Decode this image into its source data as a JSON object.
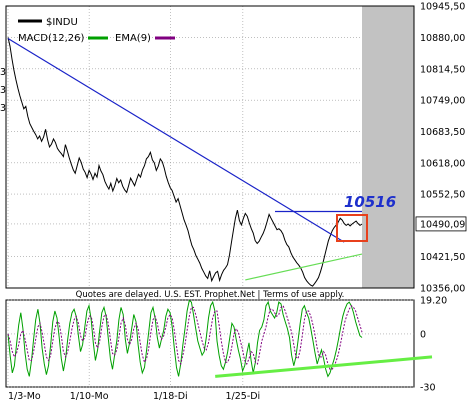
{
  "chart_data": [
    {
      "type": "line",
      "panel": "price",
      "legend": [
        {
          "label": "$INDU",
          "color": "#000000"
        },
        {
          "label": "MACD(12,26)",
          "color": "#00a000"
        },
        {
          "label": "EMA(9)",
          "color": "#800080"
        }
      ],
      "y_tick_labels": [
        "10945,50",
        "10880,00",
        "10814,50",
        "10749,00",
        "10683,50",
        "10618,00",
        "10552,50",
        "10490,09",
        "10421,50",
        "10356,00"
      ],
      "ylim": [
        10356,
        10946
      ],
      "y_scale": "linear",
      "grid": "dotted",
      "cutoff_left_ticks": [
        "3",
        "3",
        "3"
      ],
      "shaded_future_region": true,
      "series": [
        {
          "name": "$INDU",
          "color": "#000000",
          "x": [
            0,
            1,
            2,
            3,
            4,
            5,
            6,
            7,
            8,
            9,
            10,
            11,
            12,
            13,
            14,
            15,
            16,
            17,
            18,
            19,
            20,
            21,
            22,
            23,
            24,
            25,
            26,
            27,
            28,
            29,
            30,
            31,
            32,
            33,
            34,
            35,
            36,
            37,
            38,
            39,
            40,
            41,
            42,
            43,
            44,
            45,
            46,
            47,
            48,
            49,
            50,
            51,
            52,
            53,
            54,
            55,
            56,
            57,
            58,
            59,
            60,
            61,
            62,
            63,
            64,
            65,
            66,
            67,
            68,
            69,
            70,
            71,
            72,
            73,
            74,
            75,
            76,
            77,
            78,
            79,
            80,
            81,
            82,
            83,
            84,
            85,
            86,
            87,
            88,
            89,
            90,
            91,
            92,
            93,
            94,
            95,
            96,
            97,
            98,
            99,
            100,
            101,
            102,
            103,
            104,
            105,
            106,
            107,
            108,
            109,
            110,
            111,
            112,
            113,
            114,
            115,
            116,
            117,
            118,
            119,
            120,
            121,
            122,
            123,
            124,
            125,
            126,
            127,
            128,
            129,
            130,
            131,
            132,
            133,
            134,
            135,
            136,
            137,
            138,
            139,
            140,
            141,
            142,
            143,
            144,
            145,
            146,
            147,
            148,
            149,
            150,
            151,
            152,
            153,
            154,
            155,
            156,
            157,
            158,
            159,
            160,
            161,
            162,
            163,
            164,
            165,
            166,
            167,
            168,
            169,
            170,
            171,
            172,
            173,
            174,
            175,
            176,
            177,
            178,
            179
          ],
          "y": [
            10880,
            10862,
            10835,
            10812,
            10792,
            10774,
            10758,
            10745,
            10731,
            10736,
            10715,
            10700,
            10692,
            10684,
            10677,
            10668,
            10674,
            10663,
            10672,
            10688,
            10666,
            10651,
            10657,
            10668,
            10660,
            10648,
            10642,
            10637,
            10631,
            10656,
            10643,
            10628,
            10615,
            10603,
            10596,
            10612,
            10628,
            10619,
            10605,
            10598,
            10587,
            10602,
            10594,
            10583,
            10596,
            10588,
            10612,
            10601,
            10593,
            10579,
            10570,
            10563,
            10575,
            10559,
            10570,
            10585,
            10576,
            10582,
            10569,
            10561,
            10556,
            10570,
            10586,
            10578,
            10570,
            10582,
            10594,
            10588,
            10603,
            10612,
            10626,
            10631,
            10640,
            10624,
            10618,
            10602,
            10611,
            10626,
            10620,
            10607,
            10590,
            10577,
            10566,
            10560,
            10548,
            10536,
            10543,
            10528,
            10514,
            10499,
            10488,
            10476,
            10460,
            10445,
            10436,
            10424,
            10416,
            10408,
            10397,
            10389,
            10381,
            10376,
            10392,
            10371,
            10380,
            10388,
            10391,
            10372,
            10384,
            10393,
            10398,
            10405,
            10425,
            10452,
            10478,
            10502,
            10519,
            10497,
            10488,
            10501,
            10512,
            10506,
            10492,
            10480,
            10471,
            10455,
            10449,
            10454,
            10462,
            10470,
            10481,
            10495,
            10510,
            10502,
            10494,
            10486,
            10478,
            10480,
            10476,
            10469,
            10456,
            10447,
            10442,
            10430,
            10421,
            10415,
            10409,
            10404,
            10398,
            10389,
            10378,
            10371,
            10366,
            10362,
            10360,
            10365,
            10371,
            10378,
            10390,
            10404,
            10421,
            10438,
            10455,
            10466,
            10476,
            10483,
            10488,
            10494,
            10502,
            10498,
            10491,
            10487,
            10490,
            10486,
            10490,
            10493,
            10496,
            10491,
            10487,
            10490
          ]
        },
        {
          "name": "downtrend",
          "color": "#1a23c8",
          "x": [
            0,
            170
          ],
          "y": [
            10878,
            10452
          ]
        },
        {
          "name": "support",
          "color": "#66dd55",
          "x": [
            120,
            179
          ],
          "y": [
            10373,
            10427
          ]
        },
        {
          "name": "resistance",
          "color": "#1a23c8",
          "x": [
            135,
            179
          ],
          "y": [
            10516,
            10516
          ]
        }
      ],
      "annotations": [
        {
          "label": "10516",
          "color": "#1e30cc"
        }
      ],
      "last_value_label": "10490,09"
    },
    {
      "type": "line",
      "panel": "macd",
      "header_note": "Quotes are delayed. U.S. EST. Prophet.Net | Terms of use apply.",
      "y_tick_labels": [
        "19.20",
        "0",
        "-30"
      ],
      "ylim": [
        -30,
        19.2
      ],
      "series": [
        {
          "name": "MACD(12,26)",
          "color": "#00a000",
          "values": [
            0,
            -12,
            -22,
            -18,
            -6,
            5,
            12,
            3,
            -11,
            -20,
            -24,
            -15,
            -3,
            8,
            14,
            6,
            -8,
            -17,
            -23,
            -18,
            -6,
            7,
            13,
            9,
            -2,
            -14,
            -21,
            -14,
            -3,
            6,
            12,
            14,
            10,
            -1,
            -10,
            -6,
            4,
            13,
            16,
            8,
            -5,
            -15,
            -9,
            2,
            12,
            15,
            10,
            -2,
            -14,
            -20,
            -12,
            -4,
            8,
            15,
            11,
            -3,
            -11,
            -5,
            3,
            11,
            7,
            -6,
            -16,
            -22,
            -19,
            -9,
            1,
            12,
            15,
            9,
            -2,
            -8,
            -3,
            2,
            10,
            14,
            12,
            4,
            -8,
            -19,
            -24,
            -17,
            -6,
            3,
            13,
            19,
            18,
            11,
            3,
            -4,
            -8,
            -12,
            -10,
            -2,
            9,
            16,
            18,
            13,
            -4,
            -12,
            -18,
            -20,
            -16,
            -10,
            -2,
            6,
            4,
            -3,
            -9,
            -14,
            -21,
            -18,
            -11,
            -5,
            -15,
            -22,
            -16,
            -5,
            2,
            4,
            8,
            16,
            18,
            13,
            11,
            9,
            12,
            18,
            17,
            11,
            7,
            3,
            -2,
            -12,
            -18,
            -13,
            -4,
            6,
            14,
            16,
            12,
            9,
            3,
            -4,
            -11,
            -17,
            -13,
            -9,
            -14,
            -20,
            -24,
            -22,
            -18,
            -14,
            -9,
            -3,
            4,
            10,
            14,
            17,
            18,
            16,
            12,
            7,
            3,
            -1,
            -2
          ]
        },
        {
          "name": "EMA(9)",
          "color": "#800080",
          "values": [
            0,
            -4,
            -10,
            -13,
            -11,
            -6,
            0,
            2,
            -3,
            -9,
            -15,
            -15,
            -10,
            -3,
            4,
            6,
            1,
            -6,
            -13,
            -15,
            -12,
            -4,
            3,
            7,
            6,
            -1,
            -10,
            -13,
            -10,
            -4,
            3,
            8,
            10,
            6,
            -1,
            -4,
            -2,
            5,
            10,
            10,
            4,
            -5,
            -8,
            -4,
            4,
            10,
            11,
            6,
            -3,
            -11,
            -12,
            -9,
            -2,
            6,
            9,
            5,
            -3,
            -6,
            -3,
            3,
            6,
            3,
            -5,
            -12,
            -16,
            -14,
            -8,
            1,
            8,
            10,
            6,
            0,
            -3,
            -1,
            4,
            9,
            11,
            9,
            2,
            -7,
            -15,
            -17,
            -12,
            -6,
            2,
            10,
            15,
            15,
            11,
            6,
            1,
            -4,
            -8,
            -9,
            -5,
            2,
            9,
            13,
            13,
            5,
            -4,
            -11,
            -16,
            -16,
            -13,
            -7,
            0,
            3,
            1,
            -4,
            -9,
            -15,
            -17,
            -14,
            -10,
            -11,
            -16,
            -17,
            -11,
            -4,
            0,
            4,
            10,
            14,
            14,
            12,
            10,
            11,
            15,
            16,
            13,
            9,
            5,
            1,
            -6,
            -13,
            -14,
            -9,
            -1,
            8,
            13,
            13,
            10,
            5,
            -1,
            -8,
            -13,
            -13,
            -10,
            -12,
            -17,
            -20,
            -20,
            -18,
            -15,
            -11,
            -5,
            1,
            7,
            11,
            14,
            16,
            15,
            13,
            9,
            5,
            1
          ]
        },
        {
          "name": "momentum-support",
          "color": "#66ee44",
          "x": [
            120,
            205
          ],
          "y": [
            -24,
            -13
          ]
        }
      ],
      "x_tick_labels": [
        "1/3-Mo",
        "1/10-Mo",
        "1/18-Di",
        "1/25-Di"
      ],
      "x_tick_positions": [
        0,
        47,
        94,
        136
      ],
      "xlim": [
        0,
        205
      ]
    }
  ]
}
